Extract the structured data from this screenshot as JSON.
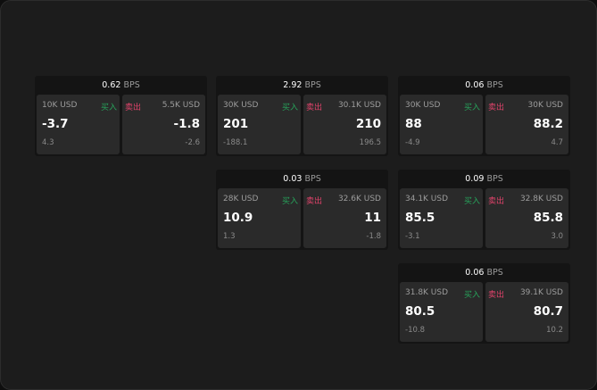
{
  "buy_label": "买入",
  "sell_label": "卖出",
  "unit": "BPS",
  "colors": {
    "buy": "#27a35b",
    "sell": "#e0436b"
  },
  "widgets": [
    {
      "spread": "0.62",
      "buy": {
        "size": "10K USD",
        "price": "-3.7",
        "change": "4.3"
      },
      "sell": {
        "size": "5.5K USD",
        "price": "-1.8",
        "change": "-2.6"
      }
    },
    {
      "spread": "2.92",
      "buy": {
        "size": "30K USD",
        "price": "201",
        "change": "-188.1"
      },
      "sell": {
        "size": "30.1K USD",
        "price": "210",
        "change": "196.5"
      }
    },
    {
      "spread": "0.06",
      "buy": {
        "size": "30K USD",
        "price": "88",
        "change": "-4.9"
      },
      "sell": {
        "size": "30K USD",
        "price": "88.2",
        "change": "4.7"
      }
    },
    {
      "spread": "0.03",
      "buy": {
        "size": "28K USD",
        "price": "10.9",
        "change": "1.3"
      },
      "sell": {
        "size": "32.6K USD",
        "price": "11",
        "change": "-1.8"
      }
    },
    {
      "spread": "0.09",
      "buy": {
        "size": "34.1K USD",
        "price": "85.5",
        "change": "-3.1"
      },
      "sell": {
        "size": "32.8K USD",
        "price": "85.8",
        "change": "3.0"
      }
    },
    {
      "spread": "0.06",
      "buy": {
        "size": "31.8K USD",
        "price": "80.5",
        "change": "-10.8"
      },
      "sell": {
        "size": "39.1K USD",
        "price": "80.7",
        "change": "10.2"
      }
    }
  ]
}
